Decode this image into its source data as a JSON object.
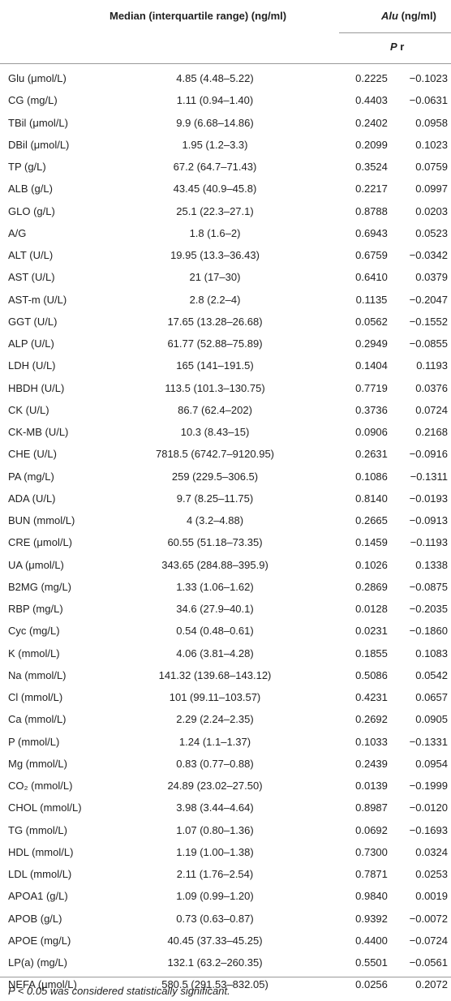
{
  "table": {
    "header": {
      "median": "Median (interquartile range) (ng/ml)",
      "alu": "Alu",
      "alu_unit": "(ng/ml)",
      "p": "P",
      "r": "r"
    },
    "rows": [
      [
        "Glu (μmol/L)",
        "4.85 (4.48–5.22)",
        "0.2225",
        "−0.1023"
      ],
      [
        "CG (mg/L)",
        "1.11 (0.94–1.40)",
        "0.4403",
        "−0.0631"
      ],
      [
        "TBil (μmol/L)",
        "9.9 (6.68–14.86)",
        "0.2402",
        "0.0958"
      ],
      [
        "DBil (μmol/L)",
        "1.95 (1.2–3.3)",
        "0.2099",
        "0.1023"
      ],
      [
        "TP (g/L)",
        "67.2 (64.7–71.43)",
        "0.3524",
        "0.0759"
      ],
      [
        "ALB (g/L)",
        "43.45 (40.9–45.8)",
        "0.2217",
        "0.0997"
      ],
      [
        "GLO (g/L)",
        "25.1 (22.3–27.1)",
        "0.8788",
        "0.0203"
      ],
      [
        "A/G",
        "1.8 (1.6–2)",
        "0.6943",
        "0.0523"
      ],
      [
        "ALT (U/L)",
        "19.95 (13.3–36.43)",
        "0.6759",
        "−0.0342"
      ],
      [
        "AST (U/L)",
        "21 (17–30)",
        "0.6410",
        "0.0379"
      ],
      [
        "AST-m (U/L)",
        "2.8 (2.2–4)",
        "0.1135",
        "−0.2047"
      ],
      [
        "GGT (U/L)",
        "17.65 (13.28–26.68)",
        "0.0562",
        "−0.1552"
      ],
      [
        "ALP (U/L)",
        "61.77 (52.88–75.89)",
        "0.2949",
        "−0.0855"
      ],
      [
        "LDH (U/L)",
        "165 (141–191.5)",
        "0.1404",
        "0.1193"
      ],
      [
        "HBDH (U/L)",
        "113.5 (101.3–130.75)",
        "0.7719",
        "0.0376"
      ],
      [
        "CK (U/L)",
        "86.7 (62.4–202)",
        "0.3736",
        "0.0724"
      ],
      [
        "CK-MB (U/L)",
        "10.3 (8.43–15)",
        "0.0906",
        "0.2168"
      ],
      [
        "CHE (U/L)",
        "7818.5 (6742.7–9120.95)",
        "0.2631",
        "−0.0916"
      ],
      [
        "PA (mg/L)",
        "259 (229.5–306.5)",
        "0.1086",
        "−0.1311"
      ],
      [
        "ADA (U/L)",
        "9.7 (8.25–11.75)",
        "0.8140",
        "−0.0193"
      ],
      [
        "BUN (mmol/L)",
        "4 (3.2–4.88)",
        "0.2665",
        "−0.0913"
      ],
      [
        "CRE (μmol/L)",
        "60.55 (51.18–73.35)",
        "0.1459",
        "−0.1193"
      ],
      [
        "UA (μmol/L)",
        "343.65 (284.88–395.9)",
        "0.1026",
        "0.1338"
      ],
      [
        "B2MG (mg/L)",
        "1.33 (1.06–1.62)",
        "0.2869",
        "−0.0875"
      ],
      [
        "RBP (mg/L)",
        "34.6 (27.9–40.1)",
        "0.0128",
        "−0.2035"
      ],
      [
        "Cyc (mg/L)",
        "0.54 (0.48–0.61)",
        "0.0231",
        "−0.1860"
      ],
      [
        "K (mmol/L)",
        "4.06 (3.81–4.28)",
        "0.1855",
        "0.1083"
      ],
      [
        "Na (mmol/L)",
        "141.32 (139.68–143.12)",
        "0.5086",
        "0.0542"
      ],
      [
        "Cl (mmol/L)",
        "101 (99.11–103.57)",
        "0.4231",
        "0.0657"
      ],
      [
        "Ca (mmol/L)",
        "2.29 (2.24–2.35)",
        "0.2692",
        "0.0905"
      ],
      [
        "P (mmol/L)",
        "1.24 (1.1–1.37)",
        "0.1033",
        "−0.1331"
      ],
      [
        "Mg (mmol/L)",
        "0.83 (0.77–0.88)",
        "0.2439",
        "0.0954"
      ],
      [
        "CO₂ (mmol/L)",
        "24.89 (23.02–27.50)",
        "0.0139",
        "−0.1999"
      ],
      [
        "CHOL (mmol/L)",
        "3.98 (3.44–4.64)",
        "0.8987",
        "−0.0120"
      ],
      [
        "TG (mmol/L)",
        "1.07 (0.80–1.36)",
        "0.0692",
        "−0.1693"
      ],
      [
        "HDL (mmol/L)",
        "1.19 (1.00–1.38)",
        "0.7300",
        "0.0324"
      ],
      [
        "LDL (mmol/L)",
        "2.11 (1.76–2.54)",
        "0.7871",
        "0.0253"
      ],
      [
        "APOA1 (g/L)",
        "1.09 (0.99–1.20)",
        "0.9840",
        "0.0019"
      ],
      [
        "APOB (g/L)",
        "0.73 (0.63–0.87)",
        "0.9392",
        "−0.0072"
      ],
      [
        "APOE (mg/L)",
        "40.45 (37.33–45.25)",
        "0.4400",
        "−0.0724"
      ],
      [
        "LP(a) (mg/L)",
        "132.1 (63.2–260.35)",
        "0.5501",
        "−0.0561"
      ],
      [
        "NEFA (μmol/L)",
        "580.5 (291.53–832.05)",
        "0.0256",
        "0.2072"
      ]
    ],
    "footnote": "P < 0.05 was considered statistically significant."
  }
}
